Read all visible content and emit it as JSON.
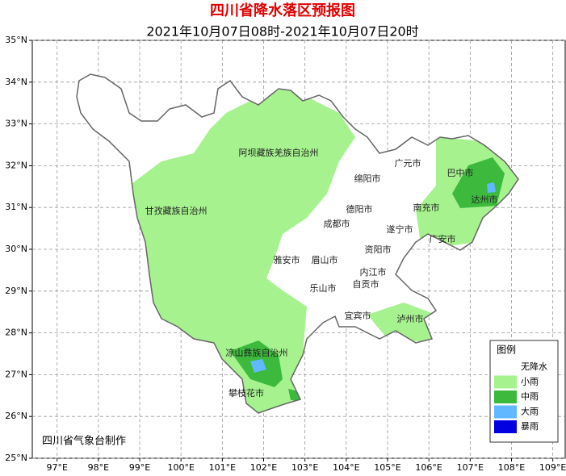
{
  "map": {
    "title": "四川省降水落区预报图",
    "subtitle": "2021年10月07日08时-2021年10月07日20时",
    "xlim": [
      96.4,
      109.3
    ],
    "ylim": [
      25,
      35
    ],
    "xticks": [
      {
        "value": 97,
        "label": "97°E"
      },
      {
        "value": 98,
        "label": "98°E"
      },
      {
        "value": 99,
        "label": "99°E"
      },
      {
        "value": 100,
        "label": "100°E"
      },
      {
        "value": 101,
        "label": "101°E"
      },
      {
        "value": 102,
        "label": "102°E"
      },
      {
        "value": 103,
        "label": "103°E"
      },
      {
        "value": 104,
        "label": "104°E"
      },
      {
        "value": 105,
        "label": "105°E"
      },
      {
        "value": 106,
        "label": "106°E"
      },
      {
        "value": 107,
        "label": "107°E"
      },
      {
        "value": 108,
        "label": "108°E"
      },
      {
        "value": 109,
        "label": "109°E"
      }
    ],
    "yticks": [
      {
        "value": 25,
        "label": "25°N"
      },
      {
        "value": 26,
        "label": "26°N"
      },
      {
        "value": 27,
        "label": "27°N"
      },
      {
        "value": 28,
        "label": "28°N"
      },
      {
        "value": 29,
        "label": "29°N"
      },
      {
        "value": 30,
        "label": "30°N"
      },
      {
        "value": 31,
        "label": "31°N"
      },
      {
        "value": 32,
        "label": "32°N"
      },
      {
        "value": 33,
        "label": "33°N"
      },
      {
        "value": 34,
        "label": "34°N"
      },
      {
        "value": 35,
        "label": "35°N"
      }
    ],
    "places": [
      "阿坝藏族羌族自治州",
      "甘孜藏族自治州",
      "凉山彝族自治州",
      "攀枝花市",
      "雅安市",
      "眉山市",
      "乐山市",
      "成都市",
      "德阳市",
      "绵阳市",
      "广元市",
      "巴中市",
      "达州市",
      "南充市",
      "遂宁市",
      "广安市",
      "资阳市",
      "内江市",
      "自贡市",
      "宜宾市",
      "泸州市"
    ],
    "legend": {
      "title": "图例",
      "items": [
        {
          "name": "无降水",
          "color": "#ffffff"
        },
        {
          "name": "小雨",
          "color": "#a6f28f"
        },
        {
          "name": "中雨",
          "color": "#3dba3d"
        },
        {
          "name": "大雨",
          "color": "#61b8ff"
        },
        {
          "name": "暴雨",
          "color": "#0000e1"
        }
      ]
    },
    "credit": "四川省气象台制作"
  }
}
